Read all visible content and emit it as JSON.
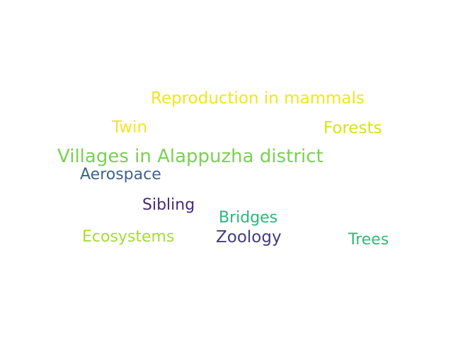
{
  "word_cloud": {
    "words": [
      {
        "text": "Reproduction in mammals",
        "color": "#f1e51d"
      },
      {
        "text": "Twin",
        "color": "#f4e525"
      },
      {
        "text": "Forests",
        "color": "#d8e219"
      },
      {
        "text": "Villages in Alappuzha district",
        "color": "#7ad151"
      },
      {
        "text": "Aerospace",
        "color": "#3b638c"
      },
      {
        "text": "Sibling",
        "color": "#482878"
      },
      {
        "text": "Bridges",
        "color": "#2fb47c"
      },
      {
        "text": "Ecosystems",
        "color": "#a5db36"
      },
      {
        "text": "Zoology",
        "color": "#443a83"
      },
      {
        "text": "Trees",
        "color": "#35b779"
      }
    ]
  }
}
